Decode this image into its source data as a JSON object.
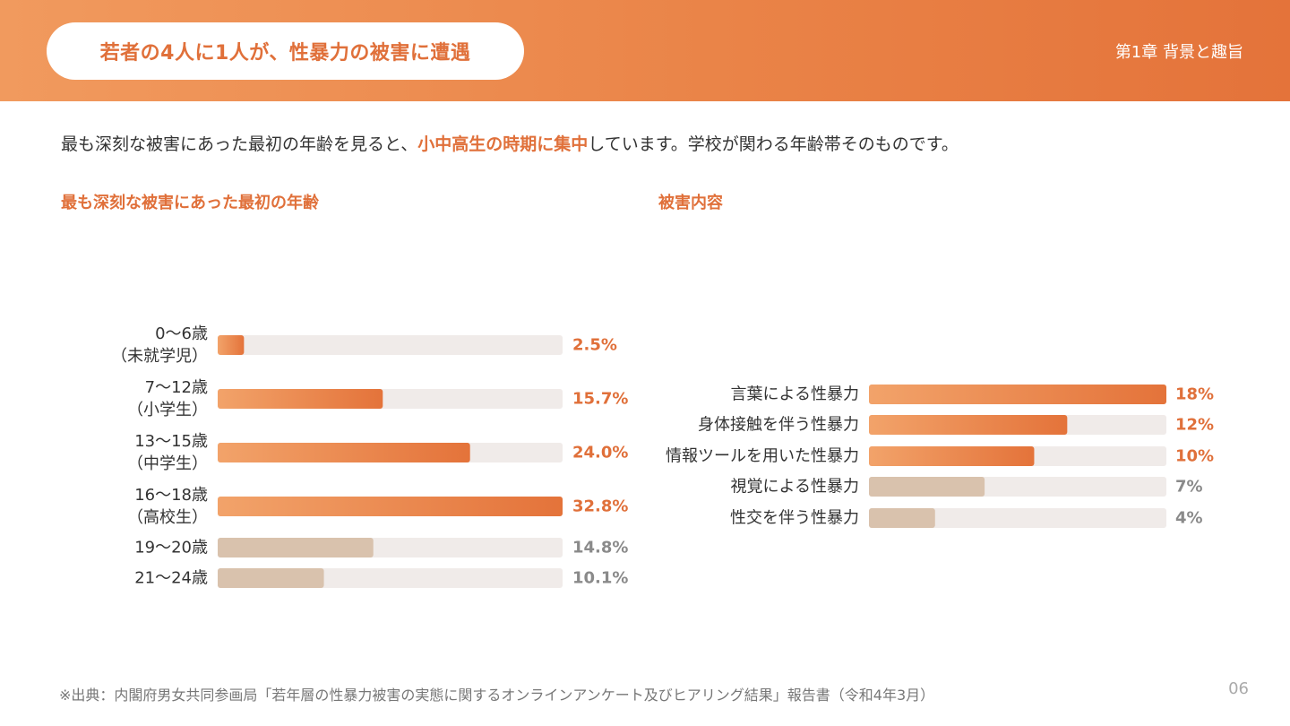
{
  "header": {
    "title": "若者の4人に1人が、性暴力の被害に遭遇",
    "chapter": "第1章 背景と趣旨"
  },
  "lead": {
    "before": "最も深刻な被害にあった最初の年齢を見ると、",
    "highlight": "小中高生の時期に集中",
    "after": "しています。学校が関わる年齢帯そのものです。"
  },
  "colors": {
    "accent": "#e0703a",
    "bar_gradient_start": "#f2a36a",
    "bar_gradient_end": "#e4733a",
    "bar_muted": "#d9c2ad",
    "track": "#f0ebe9",
    "muted_text": "#8a8a8a"
  },
  "chart_data": [
    {
      "type": "bar",
      "orientation": "horizontal",
      "title": "最も深刻な被害にあった最初の年齢",
      "xlim": [
        0,
        32.8
      ],
      "categories": [
        [
          "0〜6歳",
          "（未就学児）"
        ],
        [
          "7〜12歳",
          "（小学生）"
        ],
        [
          "13〜15歳",
          "（中学生）"
        ],
        [
          "16〜18歳",
          "（高校生）"
        ],
        [
          "19〜20歳"
        ],
        [
          "21〜24歳"
        ]
      ],
      "values": [
        2.5,
        15.7,
        24.0,
        32.8,
        14.8,
        10.1
      ],
      "value_labels": [
        "2.5%",
        "15.7%",
        "24.0%",
        "32.8%",
        "14.8%",
        "10.1%"
      ],
      "highlighted": [
        true,
        true,
        true,
        true,
        false,
        false
      ]
    },
    {
      "type": "bar",
      "orientation": "horizontal",
      "title": "被害内容",
      "xlim": [
        0,
        18
      ],
      "categories": [
        [
          "言葉による性暴力"
        ],
        [
          "身体接触を伴う性暴力"
        ],
        [
          "情報ツールを用いた性暴力"
        ],
        [
          "視覚による性暴力"
        ],
        [
          "性交を伴う性暴力"
        ]
      ],
      "values": [
        18,
        12,
        10,
        7,
        4
      ],
      "value_labels": [
        "18%",
        "12%",
        "10%",
        "7%",
        "4%"
      ],
      "highlighted": [
        true,
        true,
        true,
        false,
        false
      ]
    }
  ],
  "footnote": "※出典：内閣府男女共同参画局「若年層の性暴力被害の実態に関するオンラインアンケート及びヒアリング結果」報告書（令和4年3月）",
  "page_number": "06"
}
